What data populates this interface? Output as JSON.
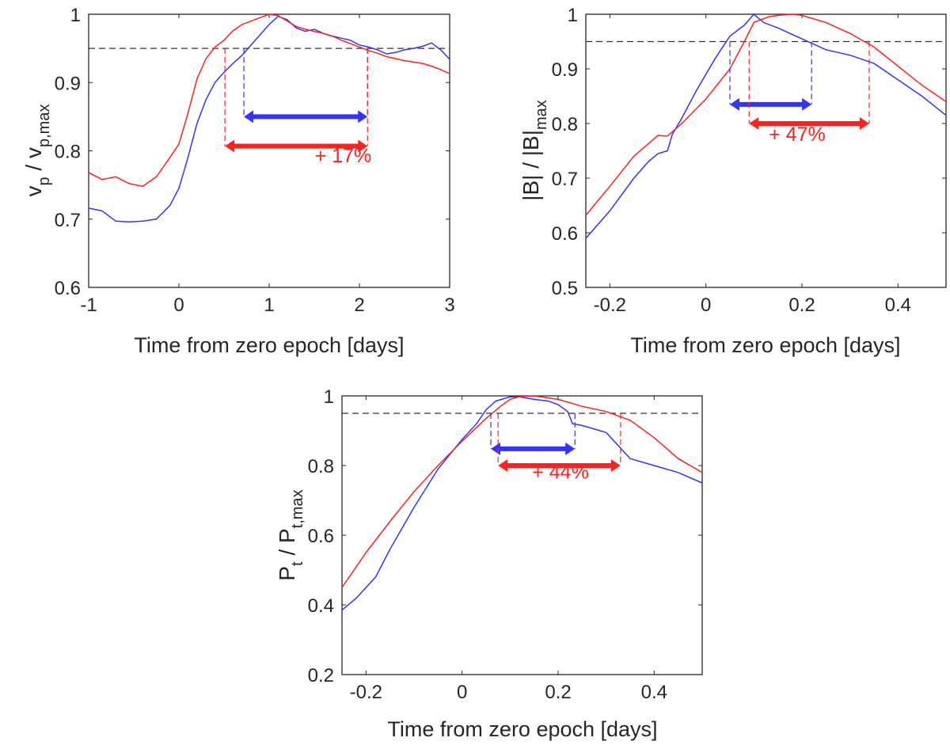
{
  "colors": {
    "blue": "#3333ff",
    "red": "#ff2020",
    "axis": "#262626",
    "threshold": "#333333"
  },
  "chart_data": [
    {
      "type": "line",
      "panel": "top-left",
      "xlabel": "Time from zero epoch [days]",
      "ylabel_main": "v",
      "ylabel_sub": "p",
      "ylabel_sep": " / v",
      "ylabel_sub2": "p,max",
      "xlim": [
        -1,
        3
      ],
      "ylim": [
        0.6,
        1.0
      ],
      "xticks": [
        -1,
        0,
        1,
        2,
        3
      ],
      "xtick_labels": [
        "-1",
        "0",
        "1",
        "2",
        "3"
      ],
      "yticks": [
        0.6,
        0.7,
        0.8,
        0.9,
        1.0
      ],
      "ytick_labels": [
        "0.6",
        "0.7",
        "0.8",
        "0.9",
        "1"
      ],
      "threshold": 0.95,
      "series": [
        {
          "name": "blue",
          "color": "#3333ff",
          "x": [
            -1.0,
            -0.85,
            -0.7,
            -0.55,
            -0.4,
            -0.25,
            -0.1,
            0.0,
            0.1,
            0.2,
            0.3,
            0.4,
            0.5,
            0.6,
            0.7,
            0.8,
            0.9,
            1.0,
            1.1,
            1.2,
            1.3,
            1.4,
            1.5,
            1.6,
            1.7,
            1.8,
            1.9,
            2.0,
            2.1,
            2.2,
            2.3,
            2.4,
            2.5,
            2.6,
            2.7,
            2.8,
            2.9,
            3.0
          ],
          "y": [
            0.716,
            0.712,
            0.697,
            0.696,
            0.697,
            0.7,
            0.72,
            0.745,
            0.79,
            0.84,
            0.875,
            0.9,
            0.915,
            0.928,
            0.94,
            0.955,
            0.97,
            0.985,
            0.997,
            0.992,
            0.98,
            0.975,
            0.978,
            0.972,
            0.968,
            0.965,
            0.962,
            0.955,
            0.952,
            0.948,
            0.942,
            0.944,
            0.948,
            0.95,
            0.953,
            0.958,
            0.948,
            0.934
          ]
        },
        {
          "name": "red",
          "color": "#ff2020",
          "x": [
            -1.0,
            -0.85,
            -0.7,
            -0.55,
            -0.4,
            -0.25,
            -0.1,
            0.0,
            0.1,
            0.2,
            0.3,
            0.4,
            0.5,
            0.6,
            0.7,
            0.8,
            0.9,
            1.0,
            1.1,
            1.2,
            1.3,
            1.4,
            1.5,
            1.6,
            1.7,
            1.8,
            1.9,
            2.0,
            2.1,
            2.2,
            2.3,
            2.4,
            2.5,
            2.6,
            2.7,
            2.8,
            2.9,
            3.0
          ],
          "y": [
            0.768,
            0.758,
            0.762,
            0.752,
            0.748,
            0.762,
            0.79,
            0.81,
            0.855,
            0.905,
            0.935,
            0.952,
            0.962,
            0.976,
            0.985,
            0.99,
            0.995,
            1.0,
            0.998,
            0.99,
            0.982,
            0.978,
            0.975,
            0.972,
            0.968,
            0.962,
            0.957,
            0.952,
            0.947,
            0.943,
            0.938,
            0.935,
            0.932,
            0.93,
            0.928,
            0.924,
            0.919,
            0.913
          ]
        }
      ],
      "intervals": [
        {
          "color": "#3333ff",
          "x1": 0.72,
          "x2": 2.09,
          "y": 0.85
        },
        {
          "color": "#ff2020",
          "x1": 0.51,
          "x2": 2.09,
          "y": 0.807
        }
      ],
      "annotation": {
        "text": "+ 17%",
        "x": 1.82,
        "y": 0.783
      }
    },
    {
      "type": "line",
      "panel": "top-right",
      "xlabel": "Time from zero epoch [days]",
      "ylabel_main": "|B| / |B|",
      "ylabel_sub": "max",
      "xlim": [
        -0.25,
        0.5
      ],
      "ylim": [
        0.5,
        1.0
      ],
      "xticks": [
        -0.2,
        0,
        0.2,
        0.4
      ],
      "xtick_labels": [
        "-0.2",
        "0",
        "0.2",
        "0.4"
      ],
      "yticks": [
        0.5,
        0.6,
        0.7,
        0.8,
        0.9,
        1.0
      ],
      "ytick_labels": [
        "0.5",
        "0.6",
        "0.7",
        "0.8",
        "0.9",
        "1"
      ],
      "threshold": 0.95,
      "series": [
        {
          "name": "blue",
          "color": "#3333ff",
          "x": [
            -0.25,
            -0.2,
            -0.15,
            -0.12,
            -0.1,
            -0.08,
            -0.07,
            -0.05,
            -0.02,
            0.0,
            0.02,
            0.05,
            0.08,
            0.1,
            0.12,
            0.15,
            0.2,
            0.25,
            0.3,
            0.35,
            0.4,
            0.45,
            0.5
          ],
          "y": [
            0.59,
            0.64,
            0.7,
            0.73,
            0.745,
            0.75,
            0.78,
            0.81,
            0.86,
            0.89,
            0.92,
            0.96,
            0.98,
            1.0,
            0.985,
            0.975,
            0.955,
            0.935,
            0.925,
            0.91,
            0.88,
            0.85,
            0.815
          ]
        },
        {
          "name": "red",
          "color": "#ff2020",
          "x": [
            -0.25,
            -0.2,
            -0.15,
            -0.1,
            -0.08,
            -0.05,
            0.0,
            0.05,
            0.08,
            0.1,
            0.13,
            0.15,
            0.18,
            0.2,
            0.25,
            0.3,
            0.35,
            0.4,
            0.45,
            0.5
          ],
          "y": [
            0.632,
            0.685,
            0.74,
            0.778,
            0.777,
            0.8,
            0.845,
            0.9,
            0.95,
            0.985,
            0.995,
            0.998,
            1.0,
            0.998,
            0.985,
            0.965,
            0.94,
            0.905,
            0.87,
            0.84
          ]
        }
      ],
      "intervals": [
        {
          "color": "#3333ff",
          "x1": 0.05,
          "x2": 0.22,
          "y": 0.835
        },
        {
          "color": "#ff2020",
          "x1": 0.09,
          "x2": 0.34,
          "y": 0.8
        }
      ],
      "annotation": {
        "text": "+ 47%",
        "x": 0.19,
        "y": 0.768
      }
    },
    {
      "type": "line",
      "panel": "bottom-center",
      "xlabel": "Time from zero epoch [days]",
      "ylabel_main": "P",
      "ylabel_sub": "t",
      "ylabel_sep": " / P",
      "ylabel_sub2": "t,max",
      "xlim": [
        -0.25,
        0.5
      ],
      "ylim": [
        0.2,
        1.0
      ],
      "xticks": [
        -0.2,
        0,
        0.2,
        0.4
      ],
      "xtick_labels": [
        "-0.2",
        "0",
        "0.2",
        "0.4"
      ],
      "yticks": [
        0.2,
        0.4,
        0.6,
        0.8,
        1.0
      ],
      "ytick_labels": [
        "0.2",
        "0.4",
        "0.6",
        "0.8",
        "1"
      ],
      "threshold": 0.95,
      "series": [
        {
          "name": "blue",
          "color": "#3333ff",
          "x": [
            -0.25,
            -0.22,
            -0.18,
            -0.15,
            -0.1,
            -0.05,
            0.0,
            0.03,
            0.05,
            0.07,
            0.1,
            0.12,
            0.15,
            0.18,
            0.2,
            0.22,
            0.23,
            0.25,
            0.3,
            0.35,
            0.4,
            0.45,
            0.5
          ],
          "y": [
            0.385,
            0.42,
            0.48,
            0.56,
            0.68,
            0.79,
            0.875,
            0.92,
            0.96,
            0.985,
            0.997,
            0.997,
            0.99,
            0.985,
            0.975,
            0.955,
            0.92,
            0.915,
            0.895,
            0.82,
            0.8,
            0.78,
            0.75
          ]
        },
        {
          "name": "red",
          "color": "#ff2020",
          "x": [
            -0.25,
            -0.2,
            -0.15,
            -0.1,
            -0.05,
            0.0,
            0.05,
            0.08,
            0.1,
            0.12,
            0.15,
            0.2,
            0.25,
            0.3,
            0.35,
            0.4,
            0.45,
            0.5
          ],
          "y": [
            0.45,
            0.55,
            0.64,
            0.725,
            0.8,
            0.87,
            0.935,
            0.97,
            0.99,
            0.998,
            1.0,
            0.99,
            0.97,
            0.955,
            0.93,
            0.88,
            0.82,
            0.78
          ]
        }
      ],
      "intervals": [
        {
          "color": "#3333ff",
          "x1": 0.06,
          "x2": 0.235,
          "y": 0.848
        },
        {
          "color": "#ff2020",
          "x1": 0.075,
          "x2": 0.33,
          "y": 0.8
        }
      ],
      "annotation": {
        "text": "+ 44%",
        "x": 0.205,
        "y": 0.762
      }
    }
  ]
}
